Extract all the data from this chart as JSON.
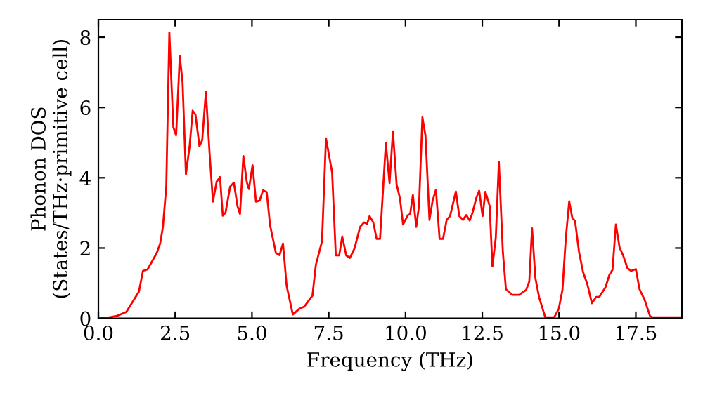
{
  "chart_data": {
    "type": "line",
    "xlabel": "Frequency (THz)",
    "ylabel": "Phonon DOS\n(States/THz·primitive cell)",
    "xlim": [
      0,
      19
    ],
    "ylim": [
      0,
      8.5
    ],
    "xticks": [
      {
        "value": 0,
        "label": "0.0"
      },
      {
        "value": 2.5,
        "label": "2.5"
      },
      {
        "value": 5,
        "label": "5.0"
      },
      {
        "value": 7.5,
        "label": "7.5"
      },
      {
        "value": 10,
        "label": "10.0"
      },
      {
        "value": 12.5,
        "label": "12.5"
      },
      {
        "value": 15,
        "label": "15.0"
      },
      {
        "value": 17.5,
        "label": "17.5"
      }
    ],
    "yticks": [
      0,
      2,
      4,
      6,
      8
    ],
    "grid": false,
    "marker": "none",
    "line_style": "solid",
    "series": [
      {
        "color": "#ff0000",
        "x": [
          0.0,
          0.3,
          0.6,
          0.91,
          1.32,
          1.45,
          1.6,
          1.9,
          2.01,
          2.1,
          2.21,
          2.31,
          2.44,
          2.53,
          2.65,
          2.74,
          2.85,
          2.97,
          3.07,
          3.16,
          3.29,
          3.38,
          3.5,
          3.62,
          3.73,
          3.85,
          3.96,
          4.05,
          4.14,
          4.29,
          4.41,
          4.53,
          4.61,
          4.72,
          4.83,
          4.9,
          5.02,
          5.13,
          5.25,
          5.36,
          5.48,
          5.59,
          5.78,
          5.9,
          6.01,
          6.13,
          6.33,
          6.54,
          6.7,
          6.97,
          7.08,
          7.28,
          7.41,
          7.61,
          7.73,
          7.84,
          7.94,
          8.07,
          8.19,
          8.34,
          8.52,
          8.65,
          8.75,
          8.83,
          8.95,
          9.06,
          9.17,
          9.36,
          9.48,
          9.59,
          9.71,
          9.82,
          9.92,
          10.08,
          10.15,
          10.24,
          10.35,
          10.44,
          10.55,
          10.65,
          10.78,
          10.88,
          10.99,
          11.11,
          11.22,
          11.34,
          11.45,
          11.64,
          11.75,
          11.87,
          11.98,
          12.09,
          12.18,
          12.3,
          12.4,
          12.51,
          12.6,
          12.74,
          12.83,
          12.94,
          13.04,
          13.17,
          13.27,
          13.47,
          13.7,
          13.93,
          14.03,
          14.12,
          14.23,
          14.35,
          14.55,
          14.84,
          14.99,
          15.11,
          15.22,
          15.33,
          15.43,
          15.52,
          15.65,
          15.78,
          15.92,
          16.07,
          16.21,
          16.31,
          16.51,
          16.64,
          16.74,
          16.85,
          16.97,
          17.09,
          17.23,
          17.35,
          17.5,
          17.62,
          17.78,
          17.96,
          18.04,
          18.97
        ],
        "values": [
          0.0,
          0.02,
          0.07,
          0.18,
          0.76,
          1.35,
          1.39,
          1.86,
          2.13,
          2.6,
          3.75,
          8.14,
          5.44,
          5.21,
          7.46,
          6.72,
          4.1,
          4.9,
          5.91,
          5.8,
          4.9,
          5.07,
          6.45,
          4.7,
          3.32,
          3.89,
          4.02,
          2.92,
          3.01,
          3.75,
          3.86,
          3.19,
          2.97,
          4.62,
          3.89,
          3.68,
          4.36,
          3.32,
          3.35,
          3.64,
          3.59,
          2.65,
          1.86,
          1.8,
          2.13,
          0.92,
          0.11,
          0.27,
          0.33,
          0.65,
          1.52,
          2.19,
          5.12,
          4.15,
          1.79,
          1.79,
          2.33,
          1.79,
          1.72,
          1.99,
          2.6,
          2.73,
          2.69,
          2.91,
          2.73,
          2.26,
          2.26,
          4.98,
          3.85,
          5.32,
          3.81,
          3.41,
          2.67,
          2.94,
          2.97,
          3.51,
          2.6,
          3.21,
          5.72,
          5.2,
          2.8,
          3.34,
          3.66,
          2.26,
          2.26,
          2.8,
          2.91,
          3.61,
          2.91,
          2.8,
          2.94,
          2.78,
          3.0,
          3.41,
          3.63,
          2.91,
          3.6,
          3.2,
          1.48,
          2.3,
          4.45,
          1.88,
          0.83,
          0.67,
          0.67,
          0.81,
          1.05,
          2.56,
          1.14,
          0.6,
          0.03,
          0.03,
          0.27,
          0.81,
          2.29,
          3.33,
          2.86,
          2.77,
          1.89,
          1.32,
          0.97,
          0.43,
          0.61,
          0.61,
          0.88,
          1.24,
          1.38,
          2.67,
          2.02,
          1.78,
          1.42,
          1.35,
          1.4,
          0.83,
          0.54,
          0.07,
          0.03,
          0.03
        ]
      }
    ]
  }
}
